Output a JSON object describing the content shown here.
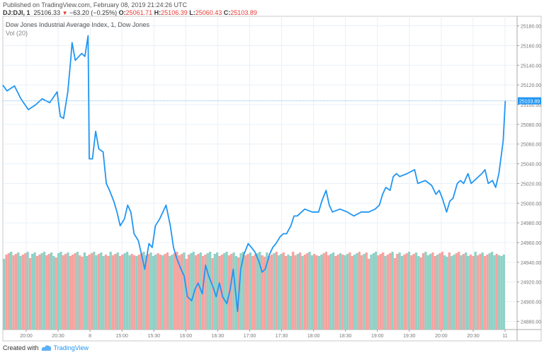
{
  "header": {
    "published": "Published on TradingView.com, February 08, 2019 21:24:26 UTC",
    "symbol": "DJ:DJI, 1",
    "last": "25106.33",
    "change": "−63.20 (−0.25%)",
    "o_label": "O:",
    "o": "25061.71",
    "h_label": "H:",
    "h": "25106.39",
    "l_label": "L:",
    "l": "25060.43",
    "c_label": "C:",
    "c": "25103.89",
    "down_icon": "triangle-down-icon"
  },
  "legend": {
    "title": "Dow Jones Industrial Average Index, 1, Dow Jones",
    "volume": "Vol (20)"
  },
  "footer": {
    "created_with": "Created with",
    "brand": "TradingView",
    "logo_icon": "tradingview-cloud-icon"
  },
  "colors": {
    "line": "#2196f3",
    "up_volume": "#8fd1c6",
    "down_volume": "#f5a3a0",
    "grid": "#e8f0f8",
    "price_label_bg": "#2196f3"
  },
  "chart_data": {
    "type": "line",
    "ylim": [
      24870,
      25190
    ],
    "y_ticks": [
      "25180.00",
      "25160.00",
      "25140.00",
      "25120.00",
      "25100.00",
      "25080.00",
      "25060.00",
      "25040.00",
      "25020.00",
      "25000.00",
      "24980.00",
      "24960.00",
      "24940.00",
      "24920.00",
      "24900.00",
      "24880.00"
    ],
    "x_ticks": [
      "20:00",
      "20:30",
      "8",
      "15:00",
      "15:30",
      "16:00",
      "16:30",
      "17:00",
      "17:30",
      "18:00",
      "18:30",
      "19:00",
      "19:30",
      "20:00",
      "20:30",
      "11"
    ],
    "current_price": "25103.89",
    "grid": true,
    "sessions": [
      {
        "date": "2019-02-07",
        "points": [
          [
            "19:38",
            25120
          ],
          [
            "19:42",
            25114
          ],
          [
            "19:49",
            25119
          ],
          [
            "19:55",
            25106
          ],
          [
            "20:02",
            25095
          ],
          [
            "20:09",
            25100
          ],
          [
            "20:15",
            25106
          ],
          [
            "20:22",
            25102
          ],
          [
            "20:29",
            25113
          ],
          [
            "20:32",
            25088
          ],
          [
            "20:35",
            25086
          ],
          [
            "20:39",
            25113
          ],
          [
            "20:42",
            25149
          ],
          [
            "20:43",
            25163
          ],
          [
            "20:46",
            25145
          ],
          [
            "20:52",
            25152
          ],
          [
            "20:55",
            25149
          ],
          [
            "20:58",
            25170
          ]
        ]
      },
      {
        "date": "2019-02-08",
        "points": [
          [
            "14:30",
            25045
          ],
          [
            "14:33",
            25045
          ],
          [
            "14:36",
            25073
          ],
          [
            "14:39",
            25055
          ],
          [
            "14:43",
            25052
          ],
          [
            "14:46",
            25020
          ],
          [
            "14:49",
            25013
          ],
          [
            "14:53",
            25002
          ],
          [
            "14:56",
            24991
          ],
          [
            "14:59",
            24977
          ],
          [
            "15:03",
            24984
          ],
          [
            "15:06",
            24998
          ],
          [
            "15:09",
            24991
          ],
          [
            "15:12",
            24969
          ],
          [
            "15:16",
            24962
          ],
          [
            "15:19",
            24948
          ],
          [
            "15:22",
            24933
          ],
          [
            "15:26",
            24959
          ],
          [
            "15:29",
            24955
          ],
          [
            "15:32",
            24977
          ],
          [
            "15:36",
            24984
          ],
          [
            "15:39",
            24991
          ],
          [
            "15:42",
            24998
          ],
          [
            "15:46",
            24977
          ],
          [
            "15:49",
            24955
          ],
          [
            "15:52",
            24944
          ],
          [
            "15:56",
            24933
          ],
          [
            "15:59",
            24926
          ],
          [
            "16:02",
            24905
          ],
          [
            "16:06",
            24901
          ],
          [
            "16:09",
            24912
          ],
          [
            "16:12",
            24919
          ],
          [
            "16:16",
            24908
          ],
          [
            "16:19",
            24937
          ],
          [
            "16:22",
            24926
          ],
          [
            "16:26",
            24915
          ],
          [
            "16:29",
            24905
          ],
          [
            "16:32",
            24919
          ],
          [
            "16:35",
            24905
          ],
          [
            "16:39",
            24898
          ],
          [
            "16:42",
            24912
          ],
          [
            "16:45",
            24933
          ],
          [
            "16:49",
            24890
          ],
          [
            "16:52",
            24933
          ],
          [
            "16:55",
            24948
          ],
          [
            "16:59",
            24959
          ],
          [
            "17:02",
            24955
          ],
          [
            "17:05",
            24951
          ],
          [
            "17:09",
            24941
          ],
          [
            "17:12",
            24930
          ],
          [
            "17:15",
            24933
          ],
          [
            "17:19",
            24948
          ],
          [
            "17:22",
            24955
          ],
          [
            "17:25",
            24959
          ],
          [
            "17:29",
            24966
          ],
          [
            "17:32",
            24969
          ],
          [
            "17:35",
            24969
          ],
          [
            "17:39",
            24977
          ],
          [
            "17:42",
            24987
          ],
          [
            "17:45",
            24987
          ],
          [
            "17:49",
            24991
          ],
          [
            "17:52",
            24994
          ],
          [
            "17:59",
            24991
          ],
          [
            "18:05",
            24991
          ],
          [
            "18:08",
            25002
          ],
          [
            "18:12",
            25013
          ],
          [
            "18:15",
            24998
          ],
          [
            "18:18",
            24991
          ],
          [
            "18:25",
            24994
          ],
          [
            "18:32",
            24991
          ],
          [
            "18:38",
            24987
          ],
          [
            "18:45",
            24991
          ],
          [
            "18:52",
            24991
          ],
          [
            "18:58",
            24994
          ],
          [
            "19:02",
            24998
          ],
          [
            "19:05",
            25009
          ],
          [
            "19:08",
            25016
          ],
          [
            "19:12",
            25013
          ],
          [
            "19:15",
            25027
          ],
          [
            "19:18",
            25030
          ],
          [
            "19:21",
            25027
          ],
          [
            "19:28",
            25030
          ],
          [
            "19:35",
            25034
          ],
          [
            "19:38",
            25020
          ],
          [
            "19:45",
            25023
          ],
          [
            "19:51",
            25018
          ],
          [
            "19:55",
            25009
          ],
          [
            "19:58",
            25013
          ],
          [
            "20:01",
            25005
          ],
          [
            "20:05",
            24991
          ],
          [
            "20:08",
            25002
          ],
          [
            "20:11",
            25005
          ],
          [
            "20:15",
            25020
          ],
          [
            "20:18",
            25023
          ],
          [
            "20:21",
            25020
          ],
          [
            "20:25",
            25030
          ],
          [
            "20:28",
            25020
          ],
          [
            "20:31",
            25023
          ],
          [
            "20:38",
            25030
          ],
          [
            "20:41",
            25034
          ],
          [
            "20:44",
            25020
          ],
          [
            "20:48",
            25023
          ],
          [
            "20:51",
            25016
          ],
          [
            "20:54",
            25030
          ],
          [
            "20:58",
            25063
          ],
          [
            "21:00",
            25103.89
          ]
        ]
      }
    ],
    "volume_direction": "uddudduudduduudduudduuduuddudddudduudduuduudduddudduuudduddudduuuddudduuddddudduuddudduuduudduudduuduuddudduuddudduduudduuddududduudduuddduudduduudduuddudduuuddduddudduuddudduudduuuddudduuduudduduudduddudduuuduuu"
  }
}
